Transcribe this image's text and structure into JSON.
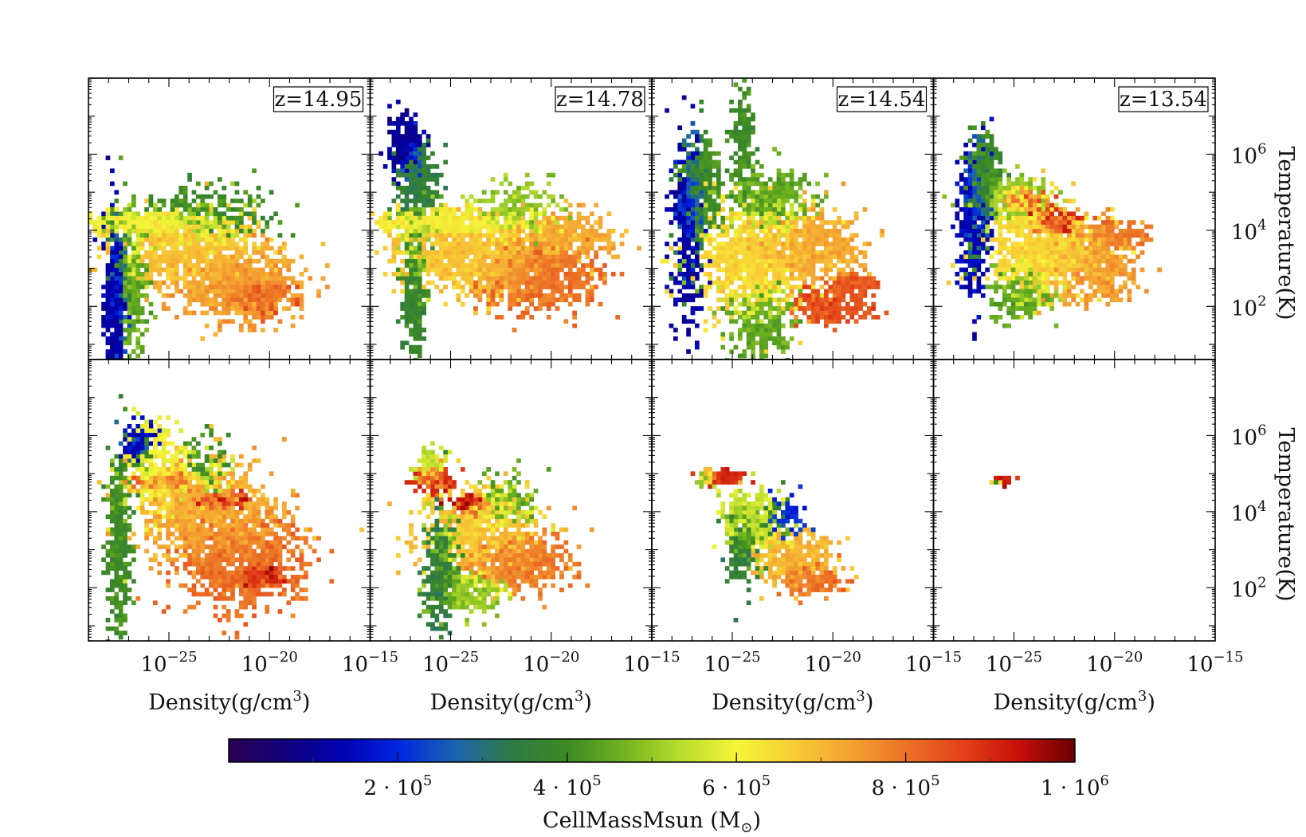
{
  "chart_data": {
    "type": "heatmap",
    "description_kind": "phase diagrams (2D histograms), 2 rows x 4 columns",
    "x_axis": {
      "label": "Density(g/cm³)",
      "scale": "log",
      "xlim": [
        1e-29,
        1e-15
      ],
      "ticks": [
        {
          "value": 1e-25,
          "base": "10",
          "exp": "−25"
        },
        {
          "value": 1e-20,
          "base": "10",
          "exp": "−20"
        },
        {
          "value": 1e-15,
          "base": "10",
          "exp": "−15"
        }
      ]
    },
    "y_axis": {
      "label": "Temperature(K)",
      "scale": "log",
      "ylim": [
        4,
        100000000.0
      ],
      "ticks": [
        {
          "value": 100,
          "base": "10",
          "exp": "2"
        },
        {
          "value": 10000,
          "base": "10",
          "exp": "4"
        },
        {
          "value": 1000000,
          "base": "10",
          "exp": "6"
        }
      ]
    },
    "panels": [
      {
        "row": 0,
        "col": 0,
        "label": "z=14.95",
        "blobs": [
          {
            "x": -27.7,
            "y": 2.4,
            "sx": 0.25,
            "sy": 1.0,
            "n": 480,
            "w": 0.12
          },
          {
            "x": -26.0,
            "y": 4.2,
            "sx": 1.5,
            "sy": 0.15,
            "n": 450,
            "w": 0.6
          },
          {
            "x": -24.0,
            "y": 3.5,
            "sx": 1.8,
            "sy": 0.45,
            "n": 800,
            "w": 0.68
          },
          {
            "x": -21.5,
            "y": 2.5,
            "sx": 1.5,
            "sy": 0.45,
            "n": 700,
            "w": 0.74
          },
          {
            "x": -20.5,
            "y": 2.3,
            "sx": 0.7,
            "sy": 0.2,
            "n": 200,
            "w": 0.84
          },
          {
            "x": -26.8,
            "y": 2.5,
            "sx": 0.4,
            "sy": 1.0,
            "n": 300,
            "w": 0.45
          },
          {
            "x": -23.0,
            "y": 4.4,
            "sx": 1.5,
            "sy": 0.4,
            "n": 250,
            "w": 0.4
          }
        ]
      },
      {
        "row": 0,
        "col": 1,
        "label": "z=14.78",
        "blobs": [
          {
            "x": -27.3,
            "y": 6.3,
            "sx": 0.4,
            "sy": 0.4,
            "n": 220,
            "w": 0.1
          },
          {
            "x": -26.6,
            "y": 5.3,
            "sx": 0.5,
            "sy": 0.5,
            "n": 250,
            "w": 0.35
          },
          {
            "x": -26.8,
            "y": 2.5,
            "sx": 0.3,
            "sy": 1.0,
            "n": 380,
            "w": 0.38
          },
          {
            "x": -25.5,
            "y": 4.2,
            "sx": 1.5,
            "sy": 0.15,
            "n": 450,
            "w": 0.62
          },
          {
            "x": -23.5,
            "y": 3.3,
            "sx": 2.0,
            "sy": 0.5,
            "n": 900,
            "w": 0.68
          },
          {
            "x": -20.5,
            "y": 2.8,
            "sx": 1.4,
            "sy": 0.45,
            "n": 700,
            "w": 0.8
          },
          {
            "x": -19.0,
            "y": 3.9,
            "sx": 1.2,
            "sy": 0.3,
            "n": 250,
            "w": 0.72
          },
          {
            "x": -22.0,
            "y": 4.5,
            "sx": 1.2,
            "sy": 0.4,
            "n": 200,
            "w": 0.5
          }
        ]
      },
      {
        "row": 0,
        "col": 2,
        "label": "z=14.54",
        "blobs": [
          {
            "x": -27.2,
            "y": 4.0,
            "sx": 0.4,
            "sy": 1.3,
            "n": 400,
            "w": 0.12
          },
          {
            "x": -26.6,
            "y": 5.2,
            "sx": 0.5,
            "sy": 0.7,
            "n": 350,
            "w": 0.4
          },
          {
            "x": -24.5,
            "y": 6.5,
            "sx": 0.3,
            "sy": 0.7,
            "n": 160,
            "w": 0.4
          },
          {
            "x": -23.2,
            "y": 4.8,
            "sx": 1.0,
            "sy": 0.4,
            "n": 300,
            "w": 0.45
          },
          {
            "x": -24.0,
            "y": 3.2,
            "sx": 1.5,
            "sy": 0.7,
            "n": 800,
            "w": 0.65
          },
          {
            "x": -21.2,
            "y": 3.5,
            "sx": 1.3,
            "sy": 0.5,
            "n": 500,
            "w": 0.72
          },
          {
            "x": -20.0,
            "y": 2.0,
            "sx": 1.0,
            "sy": 0.25,
            "n": 200,
            "w": 0.85
          },
          {
            "x": -19.0,
            "y": 2.6,
            "sx": 0.6,
            "sy": 0.15,
            "n": 100,
            "w": 0.84
          },
          {
            "x": -23.5,
            "y": 1.5,
            "sx": 0.8,
            "sy": 0.6,
            "n": 250,
            "w": 0.45
          }
        ]
      },
      {
        "row": 0,
        "col": 3,
        "label": "z=13.54",
        "blobs": [
          {
            "x": -27.0,
            "y": 4.3,
            "sx": 0.4,
            "sy": 1.0,
            "n": 350,
            "w": 0.14
          },
          {
            "x": -26.5,
            "y": 5.5,
            "sx": 0.4,
            "sy": 0.5,
            "n": 250,
            "w": 0.4
          },
          {
            "x": -25.0,
            "y": 4.8,
            "sx": 1.0,
            "sy": 0.3,
            "n": 300,
            "w": 0.5
          },
          {
            "x": -23.5,
            "y": 3.5,
            "sx": 1.5,
            "sy": 0.6,
            "n": 800,
            "w": 0.65
          },
          {
            "x": -24.5,
            "y": 4.8,
            "sx": 0.6,
            "sy": 0.15,
            "n": 150,
            "w": 0.87
          },
          {
            "x": -23.0,
            "y": 4.2,
            "sx": 0.5,
            "sy": 0.12,
            "n": 120,
            "w": 0.9
          },
          {
            "x": -21.0,
            "y": 3.0,
            "sx": 1.2,
            "sy": 0.5,
            "n": 400,
            "w": 0.74
          },
          {
            "x": -20.0,
            "y": 3.9,
            "sx": 0.8,
            "sy": 0.15,
            "n": 120,
            "w": 0.8
          },
          {
            "x": -24.5,
            "y": 2.4,
            "sx": 0.8,
            "sy": 0.35,
            "n": 250,
            "w": 0.45
          }
        ]
      },
      {
        "row": 1,
        "col": 0,
        "label": "",
        "blobs": [
          {
            "x": -26.5,
            "y": 5.8,
            "sx": 0.4,
            "sy": 0.3,
            "n": 100,
            "w": 0.15
          },
          {
            "x": -27.5,
            "y": 3.0,
            "sx": 0.3,
            "sy": 1.2,
            "n": 350,
            "w": 0.4
          },
          {
            "x": -25.5,
            "y": 5.2,
            "sx": 0.7,
            "sy": 0.6,
            "n": 300,
            "w": 0.6
          },
          {
            "x": -23.0,
            "y": 4.0,
            "sx": 1.8,
            "sy": 0.7,
            "n": 900,
            "w": 0.72
          },
          {
            "x": -21.5,
            "y": 2.6,
            "sx": 1.5,
            "sy": 0.6,
            "n": 800,
            "w": 0.8
          },
          {
            "x": -20.5,
            "y": 2.3,
            "sx": 0.5,
            "sy": 0.15,
            "n": 100,
            "w": 0.95
          },
          {
            "x": -22.5,
            "y": 4.3,
            "sx": 0.6,
            "sy": 0.1,
            "n": 100,
            "w": 0.93
          },
          {
            "x": -25.0,
            "y": 4.8,
            "sx": 1.0,
            "sy": 0.1,
            "n": 120,
            "w": 0.8
          },
          {
            "x": -23.0,
            "y": 5.1,
            "sx": 0.6,
            "sy": 0.4,
            "n": 120,
            "w": 0.4
          }
        ]
      },
      {
        "row": 1,
        "col": 1,
        "label": "",
        "blobs": [
          {
            "x": -25.8,
            "y": 4.8,
            "sx": 0.5,
            "sy": 0.15,
            "n": 150,
            "w": 0.9
          },
          {
            "x": -26.0,
            "y": 5.1,
            "sx": 0.4,
            "sy": 0.3,
            "n": 100,
            "w": 0.55
          },
          {
            "x": -24.0,
            "y": 4.2,
            "sx": 0.5,
            "sy": 0.12,
            "n": 100,
            "w": 0.95
          },
          {
            "x": -23.5,
            "y": 3.5,
            "sx": 1.4,
            "sy": 0.6,
            "n": 600,
            "w": 0.68
          },
          {
            "x": -21.5,
            "y": 2.7,
            "sx": 1.3,
            "sy": 0.4,
            "n": 400,
            "w": 0.78
          },
          {
            "x": -25.5,
            "y": 2.5,
            "sx": 0.4,
            "sy": 0.8,
            "n": 300,
            "w": 0.35
          },
          {
            "x": -24.0,
            "y": 1.9,
            "sx": 0.8,
            "sy": 0.3,
            "n": 200,
            "w": 0.5
          },
          {
            "x": -22.5,
            "y": 4.2,
            "sx": 0.8,
            "sy": 0.35,
            "n": 150,
            "w": 0.45
          }
        ]
      },
      {
        "row": 1,
        "col": 2,
        "label": "",
        "blobs": [
          {
            "x": -25.5,
            "y": 4.9,
            "sx": 0.5,
            "sy": 0.08,
            "n": 120,
            "w": 0.9
          },
          {
            "x": -26.2,
            "y": 4.9,
            "sx": 0.3,
            "sy": 0.1,
            "n": 50,
            "w": 0.5
          },
          {
            "x": -24.0,
            "y": 3.8,
            "sx": 0.7,
            "sy": 0.4,
            "n": 300,
            "w": 0.55
          },
          {
            "x": -22.0,
            "y": 2.8,
            "sx": 1.0,
            "sy": 0.35,
            "n": 350,
            "w": 0.7
          },
          {
            "x": -24.5,
            "y": 3.0,
            "sx": 0.4,
            "sy": 0.5,
            "n": 150,
            "w": 0.35
          },
          {
            "x": -22.5,
            "y": 3.8,
            "sx": 0.5,
            "sy": 0.3,
            "n": 80,
            "w": 0.2
          },
          {
            "x": -21.0,
            "y": 2.2,
            "sx": 0.8,
            "sy": 0.2,
            "n": 150,
            "w": 0.8
          }
        ]
      },
      {
        "row": 1,
        "col": 3,
        "label": "",
        "blobs": [
          {
            "x": -25.5,
            "y": 4.8,
            "sx": 0.25,
            "sy": 0.04,
            "n": 40,
            "w": 0.92
          },
          {
            "x": -25.8,
            "y": 4.8,
            "sx": 0.1,
            "sy": 0.03,
            "n": 10,
            "w": 0.12
          }
        ]
      }
    ],
    "colorbar": {
      "label": "CellMassMsun (M",
      "label_sub": "⊙",
      "label_close": ")",
      "range": [
        0,
        1000000
      ],
      "ticks": [
        {
          "value": 200000,
          "mant": "2 · 10",
          "exp": "5"
        },
        {
          "value": 400000,
          "mant": "4 · 10",
          "exp": "5"
        },
        {
          "value": 600000,
          "mant": "6 · 10",
          "exp": "5"
        },
        {
          "value": 800000,
          "mant": "8 · 10",
          "exp": "5"
        },
        {
          "value": 1000000,
          "mant": "1 · 10",
          "exp": "6"
        }
      ],
      "colors": [
        "#2a0052",
        "#10007a",
        "#0000b0",
        "#0026e0",
        "#1a64b0",
        "#2f7a45",
        "#3c8a23",
        "#72b320",
        "#b8dc2e",
        "#f6f638",
        "#f7cd36",
        "#f4a332",
        "#ec7226",
        "#e24219",
        "#c61008",
        "#6a0000"
      ]
    }
  }
}
